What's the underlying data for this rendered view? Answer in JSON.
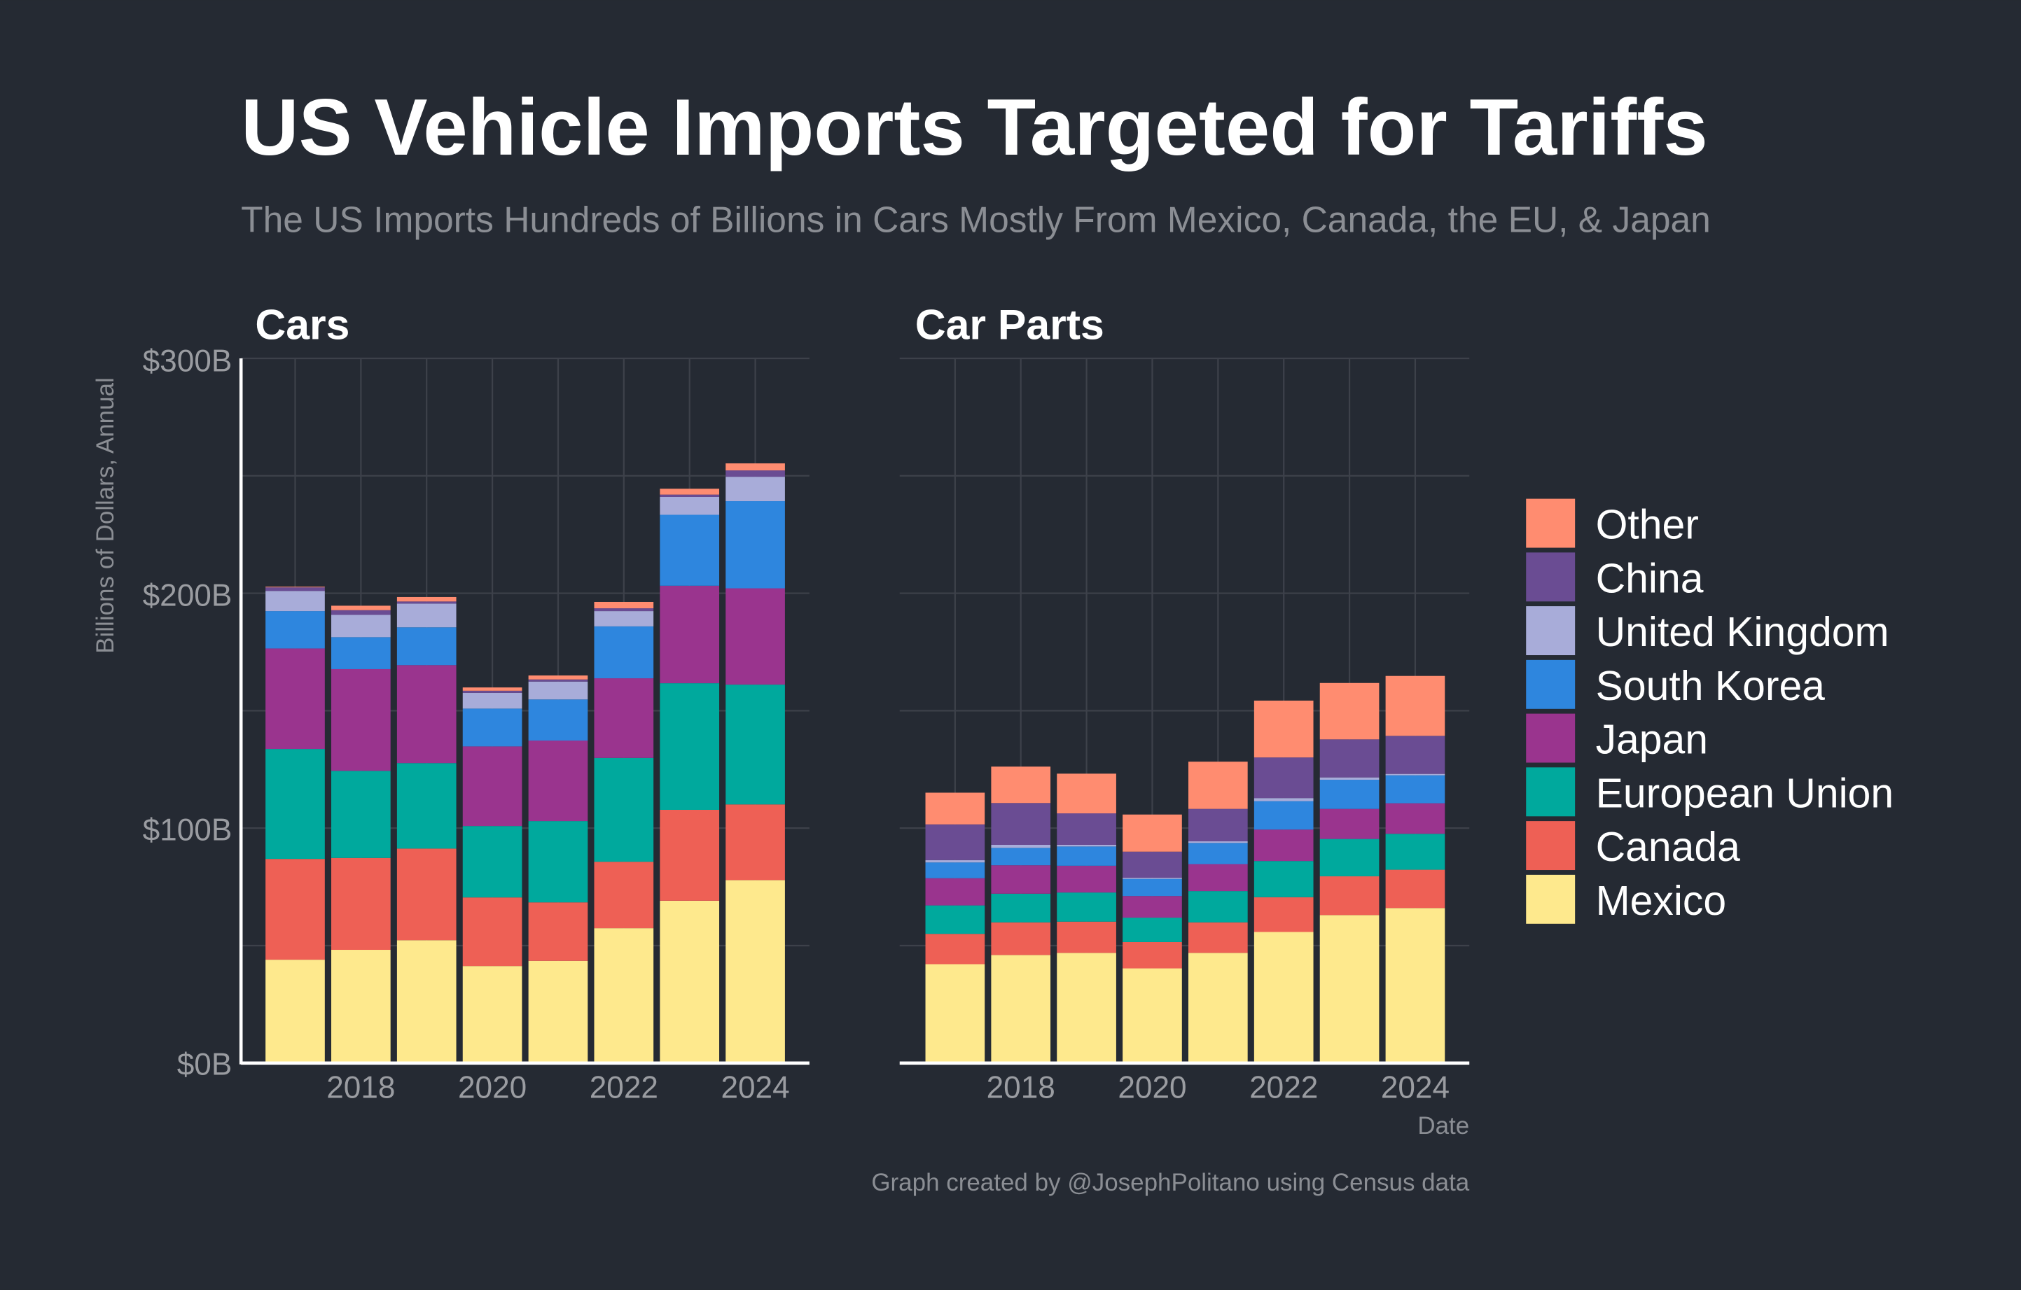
{
  "title": "US Vehicle Imports Targeted for Tariffs",
  "subtitle": "The US Imports Hundreds of Billions in Cars Mostly From Mexico, Canada, the EU, & Japan",
  "caption": "Graph created by @JosephPolitano using Census data",
  "colors": {
    "Mexico": "#fee98d",
    "Canada": "#ee6055",
    "European Union": "#00a99d",
    "Japan": "#9a348e",
    "South Korea": "#2e86de",
    "United Kingdom": "#a8acd9",
    "China": "#6a4c93",
    "Other": "#ff8c70",
    "background": "#252a33"
  },
  "chart_data": [
    {
      "type": "bar",
      "stacked": true,
      "title": "Cars",
      "xlabel": "Date",
      "ylabel": "Billions of Dollars, Annual",
      "ylim": [
        0,
        300
      ],
      "yticks": [
        "$0B",
        "$100B",
        "$200B",
        "$300B"
      ],
      "ytick_values": [
        0,
        100,
        200,
        300
      ],
      "xticks": [
        "2018",
        "2020",
        "2022",
        "2024"
      ],
      "categories": [
        2017,
        2018,
        2019,
        2020,
        2021,
        2022,
        2023,
        2024
      ],
      "grid": true,
      "series": [
        {
          "name": "Mexico",
          "values": [
            44.0,
            48.2,
            52.3,
            41.3,
            43.5,
            57.4,
            69.1,
            77.9
          ]
        },
        {
          "name": "Canada",
          "values": [
            42.9,
            39.1,
            39.0,
            29.2,
            24.9,
            28.3,
            38.7,
            32.2
          ]
        },
        {
          "name": "European Union",
          "values": [
            46.8,
            37.1,
            36.4,
            30.4,
            34.6,
            44.2,
            53.9,
            51.0
          ]
        },
        {
          "name": "Japan",
          "values": [
            42.8,
            43.3,
            41.7,
            33.9,
            34.3,
            33.9,
            41.5,
            41.0
          ]
        },
        {
          "name": "South Korea",
          "values": [
            15.9,
            13.6,
            16.1,
            16.1,
            17.5,
            22.1,
            30.2,
            37.1
          ]
        },
        {
          "name": "United Kingdom",
          "values": [
            8.6,
            9.5,
            10.1,
            6.7,
            7.6,
            6.5,
            7.6,
            10.4
          ]
        },
        {
          "name": "China",
          "values": [
            1.5,
            2.0,
            0.9,
            0.9,
            0.9,
            1.2,
            1.0,
            2.7
          ]
        },
        {
          "name": "Other",
          "values": [
            0.3,
            1.9,
            1.9,
            1.4,
            1.7,
            2.7,
            2.5,
            3.0
          ]
        }
      ]
    },
    {
      "type": "bar",
      "stacked": true,
      "title": "Car Parts",
      "xlabel": "Date",
      "ylabel": "Billions of Dollars, Annual",
      "ylim": [
        0,
        300
      ],
      "xticks": [
        "2018",
        "2020",
        "2022",
        "2024"
      ],
      "categories": [
        2017,
        2018,
        2019,
        2020,
        2021,
        2022,
        2023,
        2024
      ],
      "grid": true,
      "series": [
        {
          "name": "Mexico",
          "values": [
            42.1,
            46.0,
            46.9,
            40.3,
            46.9,
            55.8,
            63.0,
            66.0
          ]
        },
        {
          "name": "Canada",
          "values": [
            12.9,
            13.9,
            13.3,
            11.2,
            13.0,
            14.8,
            16.5,
            16.3
          ]
        },
        {
          "name": "European Union",
          "values": [
            12.1,
            12.2,
            12.4,
            10.4,
            13.3,
            15.4,
            15.9,
            15.3
          ]
        },
        {
          "name": "Japan",
          "values": [
            11.6,
            12.1,
            11.4,
            9.2,
            11.5,
            13.4,
            12.8,
            13.0
          ]
        },
        {
          "name": "South Korea",
          "values": [
            6.7,
            7.4,
            8.2,
            7.3,
            9.0,
            12.1,
            12.4,
            11.9
          ]
        },
        {
          "name": "United Kingdom",
          "values": [
            1.0,
            1.3,
            0.7,
            0.5,
            0.7,
            1.3,
            1.0,
            0.6
          ]
        },
        {
          "name": "China",
          "values": [
            15.2,
            17.8,
            13.4,
            11.1,
            13.8,
            17.3,
            16.2,
            16.2
          ]
        },
        {
          "name": "Other",
          "values": [
            13.5,
            15.5,
            16.9,
            15.8,
            20.1,
            24.2,
            24.0,
            25.5
          ]
        }
      ]
    }
  ],
  "legend": {
    "placement": "right",
    "items": [
      "Other",
      "China",
      "United Kingdom",
      "South Korea",
      "Japan",
      "European Union",
      "Canada",
      "Mexico"
    ]
  }
}
